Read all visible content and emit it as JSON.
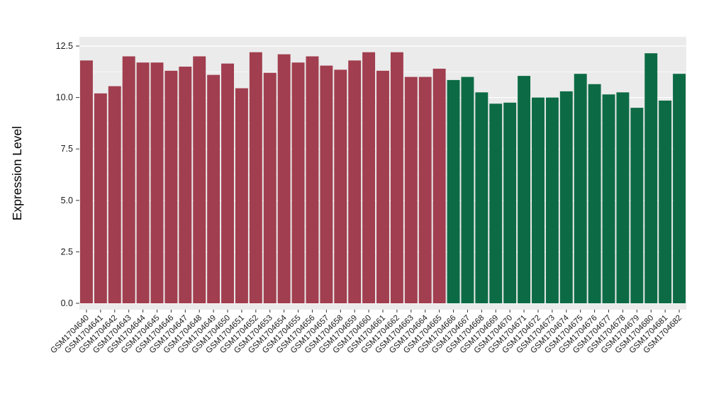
{
  "chart_data": {
    "type": "bar",
    "title": "",
    "xlabel": "",
    "ylabel": "Expression Level",
    "ylim": [
      0,
      12.5
    ],
    "yticks": [
      0,
      2.5,
      5,
      7.5,
      10,
      12.5
    ],
    "ytick_labels": [
      "0.0",
      "2.5",
      "5.0",
      "7.5",
      "10.0",
      "12.5"
    ],
    "yminor": [
      1.25,
      3.75,
      6.25,
      8.75,
      11.25
    ],
    "grid": true,
    "legend_position": "none",
    "panel_bg": "#EBEBEB",
    "grid_color": "#FFFFFF",
    "axis_text_color": "#1A1A1A",
    "tick_mark_color": "#333333",
    "group_split_index": 26,
    "group_colors": [
      "#A13E4F",
      "#0C6B45"
    ],
    "categories": [
      "GSM1704640",
      "GSM1704641",
      "GSM1704642",
      "GSM1704643",
      "GSM1704644",
      "GSM1704645",
      "GSM1704646",
      "GSM1704647",
      "GSM1704648",
      "GSM1704649",
      "GSM1704650",
      "GSM1704651",
      "GSM1704652",
      "GSM1704653",
      "GSM1704654",
      "GSM1704655",
      "GSM1704656",
      "GSM1704657",
      "GSM1704658",
      "GSM1704659",
      "GSM1704660",
      "GSM1704661",
      "GSM1704662",
      "GSM1704663",
      "GSM1704664",
      "GSM1704665",
      "GSM1704666",
      "GSM1704667",
      "GSM1704668",
      "GSM1704669",
      "GSM1704670",
      "GSM1704671",
      "GSM1704672",
      "GSM1704673",
      "GSM1704674",
      "GSM1704675",
      "GSM1704676",
      "GSM1704677",
      "GSM1704678",
      "GSM1704679",
      "GSM1704680",
      "GSM1704681",
      "GSM1704682"
    ],
    "values": [
      11.8,
      10.2,
      10.55,
      12.0,
      11.7,
      11.7,
      11.3,
      11.5,
      12.0,
      11.1,
      11.65,
      10.45,
      12.2,
      11.2,
      12.1,
      11.7,
      12.0,
      11.55,
      11.35,
      11.8,
      12.2,
      11.3,
      12.2,
      11.0,
      11.0,
      11.4,
      10.85,
      11.0,
      10.25,
      9.7,
      9.75,
      11.05,
      10.0,
      10.0,
      10.3,
      11.15,
      10.65,
      10.15,
      10.25,
      9.5,
      12.15,
      9.85,
      11.15
    ]
  }
}
